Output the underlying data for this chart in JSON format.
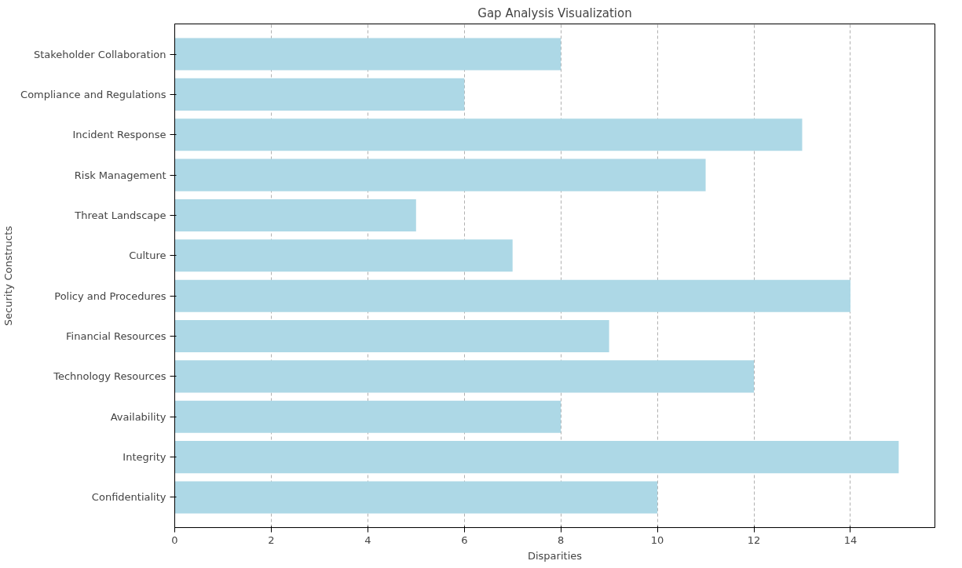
{
  "chart_data": {
    "type": "bar",
    "orientation": "horizontal",
    "title": "Gap Analysis Visualization",
    "xlabel": "Disparities",
    "ylabel": "Security Constructs",
    "categories": [
      "Stakeholder Collaboration",
      "Compliance and Regulations",
      "Incident Response",
      "Risk Management",
      "Threat Landscape",
      "Culture",
      "Policy and Procedures",
      "Financial Resources",
      "Technology Resources",
      "Availability",
      "Integrity",
      "Confidentiality"
    ],
    "values": [
      8,
      6,
      13,
      11,
      5,
      7,
      14,
      9,
      12,
      8,
      15,
      10
    ],
    "color": "#add8e6",
    "xlim": [
      0,
      15.75
    ],
    "xticks": [
      0,
      2,
      4,
      6,
      8,
      10,
      12,
      14
    ],
    "grid": "x",
    "line_style": "dashed"
  }
}
